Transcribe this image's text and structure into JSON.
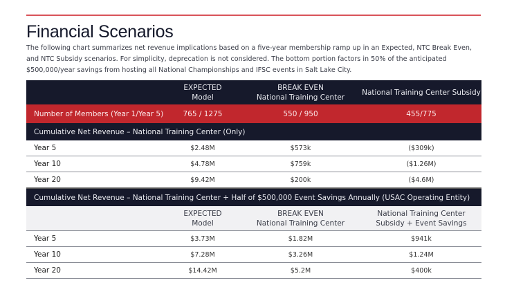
{
  "title": "Financial Scenarios",
  "description": "The following chart summarizes net revenue implications based on a five-year membership ramp up in an Expected, NTC Break Even, and NTC Subsidy scenarios.  For simplicity, deprecation is not considered.  The bottom portion factors in 50% of the anticipated $500,000/year savings from hosting all National Championships and IFSC events in Salt Lake City.",
  "colors": {
    "accent_red": "#c1272d",
    "navy": "#16192b",
    "rule": "#d9535a"
  },
  "table": {
    "header": {
      "c1a": "EXPECTED",
      "c1b": "Model",
      "c2a": "BREAK EVEN",
      "c2b": "National Training Center",
      "c3": "National Training Center Subsidy"
    },
    "members": {
      "label": "Number of Members (Year 1/Year 5)",
      "values": [
        "765 / 1275",
        "550 / 950",
        "455/775"
      ]
    },
    "section1": {
      "title": "Cumulative Net Revenue – National Training Center (Only)",
      "rows": [
        {
          "label": "Year 5",
          "values": [
            "$2.48M",
            "$573k",
            "($309k)"
          ]
        },
        {
          "label": "Year 10",
          "values": [
            "$4.78M",
            "$759k",
            "($1.26M)"
          ]
        },
        {
          "label": "Year 20",
          "values": [
            "$9.42M",
            "$200k",
            "($4.6M)"
          ]
        }
      ]
    },
    "section2": {
      "title": "Cumulative Net Revenue – National Training Center + Half of $500,000 Event Savings Annually (USAC Operating Entity)",
      "header": {
        "c1a": "EXPECTED",
        "c1b": "Model",
        "c2a": "BREAK EVEN",
        "c2b": "National Training Center",
        "c3a": "National Training Center",
        "c3b": "Subsidy + Event Savings"
      },
      "rows": [
        {
          "label": "Year 5",
          "values": [
            "$3.73M",
            "$1.82M",
            "$941k"
          ]
        },
        {
          "label": "Year 10",
          "values": [
            "$7.28M",
            "$3.26M",
            "$1.24M"
          ]
        },
        {
          "label": "Year 20",
          "values": [
            "$14.42M",
            "$5.2M",
            "$400k"
          ]
        }
      ]
    }
  }
}
